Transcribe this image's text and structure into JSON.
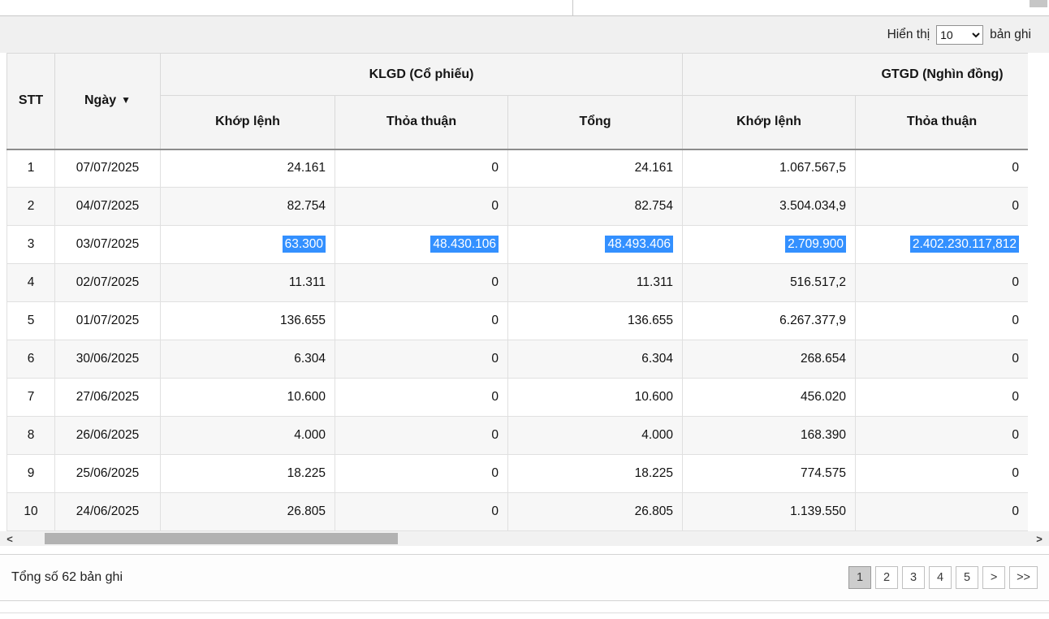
{
  "controls": {
    "show_label": "Hiển thị",
    "page_size": "10",
    "records_label": "bản ghi"
  },
  "table": {
    "header": {
      "stt": "STT",
      "date": "Ngày",
      "sort_icon": "▼",
      "klgd_group": "KLGD (Cổ phiếu)",
      "gtgd_group": "GTGD (Nghìn đồng)",
      "subcolumns": [
        "Khớp lệnh",
        "Thỏa thuận",
        "Tổng",
        "Khớp lệnh",
        "Thỏa thuận"
      ]
    },
    "rows": [
      {
        "stt": "1",
        "date": "07/07/2025",
        "klgd_khop": "24.161",
        "klgd_thoa": "0",
        "klgd_tong": "24.161",
        "gtgd_khop": "1.067.567,5",
        "gtgd_thoa": "0",
        "selected": false
      },
      {
        "stt": "2",
        "date": "04/07/2025",
        "klgd_khop": "82.754",
        "klgd_thoa": "0",
        "klgd_tong": "82.754",
        "gtgd_khop": "3.504.034,9",
        "gtgd_thoa": "0",
        "selected": false
      },
      {
        "stt": "3",
        "date": "03/07/2025",
        "klgd_khop": "63.300",
        "klgd_thoa": "48.430.106",
        "klgd_tong": "48.493.406",
        "gtgd_khop": "2.709.900",
        "gtgd_thoa": "2.402.230.117,812",
        "selected": true
      },
      {
        "stt": "4",
        "date": "02/07/2025",
        "klgd_khop": "11.311",
        "klgd_thoa": "0",
        "klgd_tong": "11.311",
        "gtgd_khop": "516.517,2",
        "gtgd_thoa": "0",
        "selected": false
      },
      {
        "stt": "5",
        "date": "01/07/2025",
        "klgd_khop": "136.655",
        "klgd_thoa": "0",
        "klgd_tong": "136.655",
        "gtgd_khop": "6.267.377,9",
        "gtgd_thoa": "0",
        "selected": false
      },
      {
        "stt": "6",
        "date": "30/06/2025",
        "klgd_khop": "6.304",
        "klgd_thoa": "0",
        "klgd_tong": "6.304",
        "gtgd_khop": "268.654",
        "gtgd_thoa": "0",
        "selected": false
      },
      {
        "stt": "7",
        "date": "27/06/2025",
        "klgd_khop": "10.600",
        "klgd_thoa": "0",
        "klgd_tong": "10.600",
        "gtgd_khop": "456.020",
        "gtgd_thoa": "0",
        "selected": false
      },
      {
        "stt": "8",
        "date": "26/06/2025",
        "klgd_khop": "4.000",
        "klgd_thoa": "0",
        "klgd_tong": "4.000",
        "gtgd_khop": "168.390",
        "gtgd_thoa": "0",
        "selected": false
      },
      {
        "stt": "9",
        "date": "25/06/2025",
        "klgd_khop": "18.225",
        "klgd_thoa": "0",
        "klgd_tong": "18.225",
        "gtgd_khop": "774.575",
        "gtgd_thoa": "0",
        "selected": false
      },
      {
        "stt": "10",
        "date": "24/06/2025",
        "klgd_khop": "26.805",
        "klgd_thoa": "0",
        "klgd_tong": "26.805",
        "gtgd_khop": "1.139.550",
        "gtgd_thoa": "0",
        "selected": false
      }
    ]
  },
  "hscrollbar": {
    "left_arrow": "<",
    "right_arrow": ">"
  },
  "footer": {
    "total_label": "Tổng số 62 bản ghi",
    "pages": [
      "1",
      "2",
      "3",
      "4",
      "5"
    ],
    "active_page": "1",
    "next_label": ">",
    "last_label": ">>"
  },
  "colors": {
    "selection_highlight": "#3390ff",
    "header_bg": "#f4f4f4",
    "stripe_bg": "#f7f7f7",
    "control_bar_bg": "#f0f0f0"
  }
}
